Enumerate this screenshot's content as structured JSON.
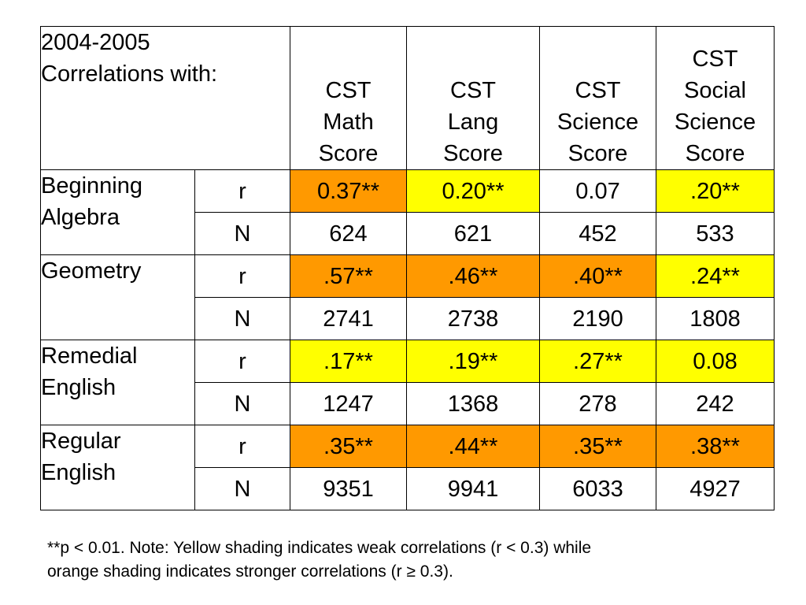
{
  "table": {
    "corner": [
      "2004-2005",
      "Correlations with:"
    ],
    "columns": [
      [
        "CST",
        "Math",
        "Score"
      ],
      [
        "CST",
        "Lang",
        "Score"
      ],
      [
        "CST",
        "Science",
        "Score"
      ],
      [
        "CST",
        "Social",
        "Science",
        "Score"
      ]
    ],
    "rows": [
      {
        "label": [
          "Beginning",
          "Algebra"
        ],
        "r": {
          "stat": "r",
          "values": [
            "0.37**",
            "0.20**",
            "0.07",
            ".20**"
          ],
          "shade": [
            "orange",
            "yellow",
            "none",
            "yellow"
          ]
        },
        "n": {
          "stat": "N",
          "values": [
            "624",
            "621",
            "452",
            "533"
          ]
        }
      },
      {
        "label": [
          "Geometry"
        ],
        "r": {
          "stat": "r",
          "values": [
            ".57**",
            ".46**",
            ".40**",
            ".24**"
          ],
          "shade": [
            "orange",
            "orange",
            "orange",
            "yellow"
          ]
        },
        "n": {
          "stat": "N",
          "values": [
            "2741",
            "2738",
            "2190",
            "1808"
          ]
        }
      },
      {
        "label": [
          "Remedial",
          "English"
        ],
        "r": {
          "stat": "r",
          "values": [
            ".17**",
            ".19**",
            ".27**",
            "0.08"
          ],
          "shade": [
            "yellow",
            "yellow",
            "yellow",
            "yellow"
          ]
        },
        "n": {
          "stat": "N",
          "values": [
            "1247",
            "1368",
            "278",
            "242"
          ]
        }
      },
      {
        "label": [
          "Regular",
          "English"
        ],
        "r": {
          "stat": "r",
          "values": [
            ".35**",
            ".44**",
            ".35**",
            ".38**"
          ],
          "shade": [
            "orange",
            "orange",
            "orange",
            "orange"
          ]
        },
        "n": {
          "stat": "N",
          "values": [
            "9351",
            "9941",
            "6033",
            "4927"
          ]
        }
      }
    ]
  },
  "colors": {
    "orange": "#ff9900",
    "yellow": "#ffff00"
  },
  "footnote": [
    "**p < 0.01.  Note: Yellow shading indicates weak correlations (r < 0.3) while",
    "orange shading indicates stronger correlations (r ≥ 0.3)."
  ]
}
